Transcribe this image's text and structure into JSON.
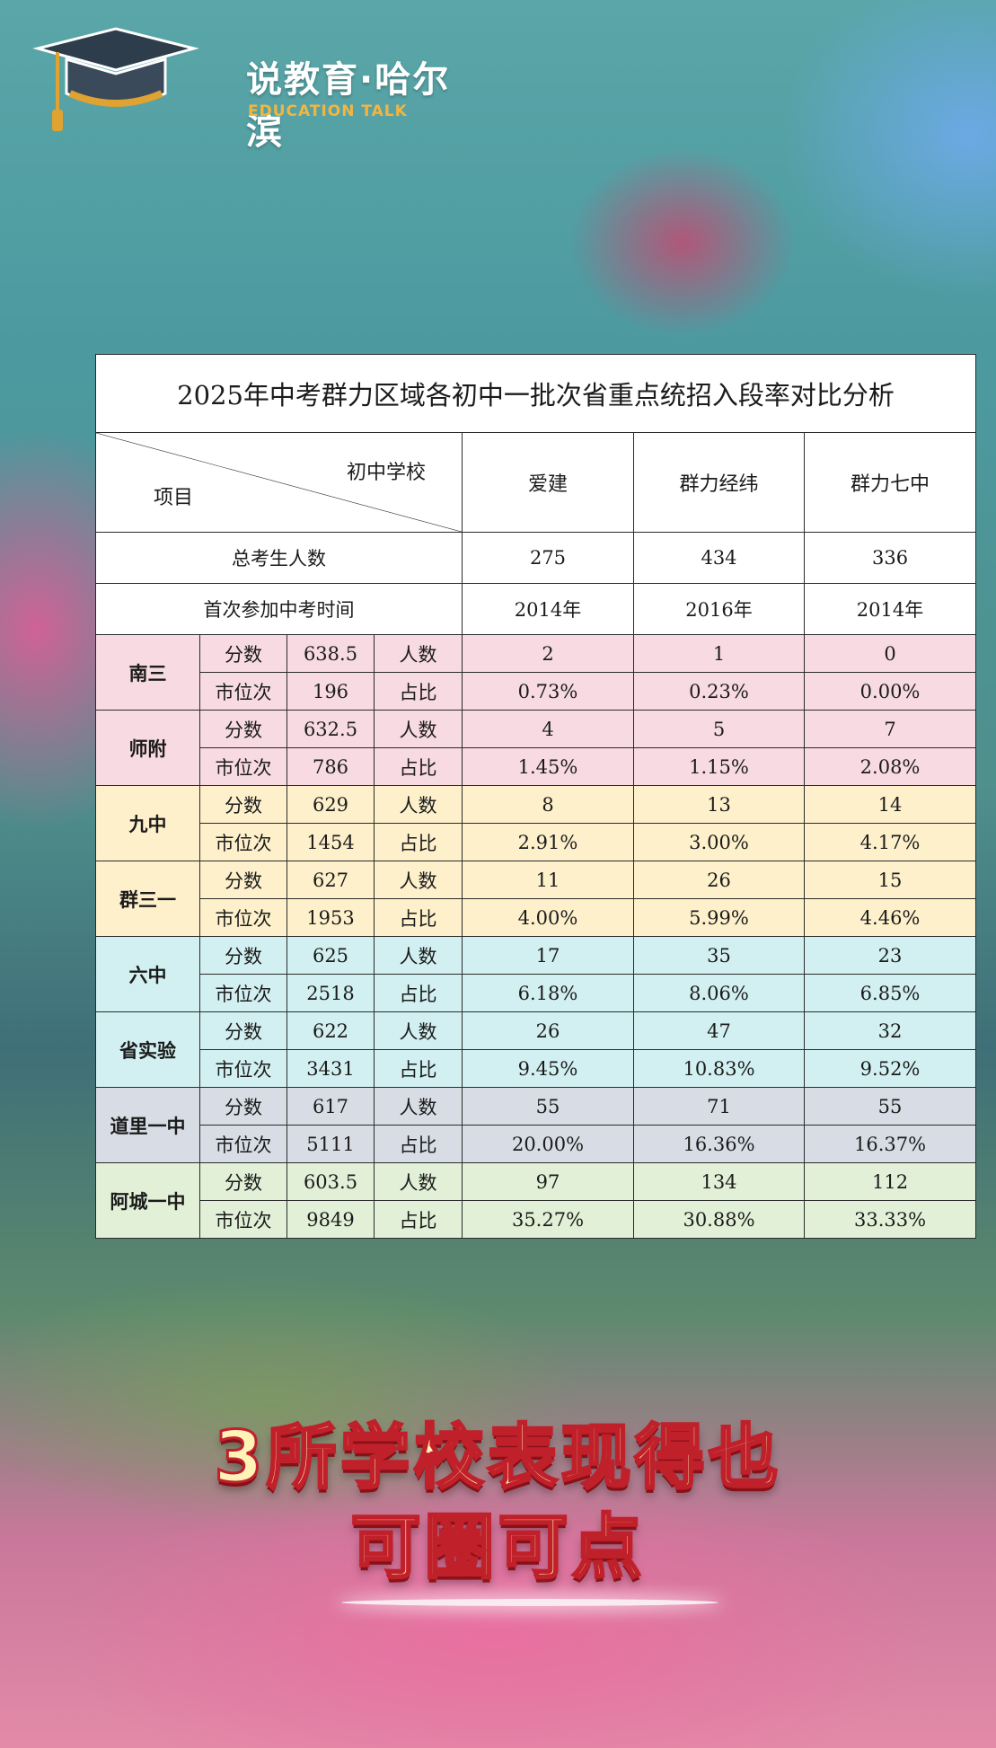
{
  "brand": {
    "name": "说教育·哈尔滨",
    "sub": "EDUCATION TALK",
    "accent": "#f2b640"
  },
  "table": {
    "title": "2025年中考群力区域各初中一批次省重点统招入段率对比分析",
    "corner_top": "初中学校",
    "corner_bottom": "项目",
    "schools": [
      "爱建",
      "群力经纬",
      "群力七中"
    ],
    "total_label": "总考生人数",
    "totals": [
      "275",
      "434",
      "336"
    ],
    "first_year_label": "首次参加中考时间",
    "first_years": [
      "2014年",
      "2016年",
      "2014年"
    ],
    "score_label": "分数",
    "rank_label": "市位次",
    "count_label": "人数",
    "ratio_label": "占比",
    "rows": [
      {
        "name": "南三",
        "score": "638.5",
        "rank": "196",
        "counts": [
          "2",
          "1",
          "0"
        ],
        "ratios": [
          "0.73%",
          "0.23%",
          "0.00%"
        ],
        "color": "#f7dae2"
      },
      {
        "name": "师附",
        "score": "632.5",
        "rank": "786",
        "counts": [
          "4",
          "5",
          "7"
        ],
        "ratios": [
          "1.45%",
          "1.15%",
          "2.08%"
        ],
        "color": "#f7dae2"
      },
      {
        "name": "九中",
        "score": "629",
        "rank": "1454",
        "counts": [
          "8",
          "13",
          "14"
        ],
        "ratios": [
          "2.91%",
          "3.00%",
          "4.17%"
        ],
        "color": "#fdf0cb"
      },
      {
        "name": "群三一",
        "score": "627",
        "rank": "1953",
        "counts": [
          "11",
          "26",
          "15"
        ],
        "ratios": [
          "4.00%",
          "5.99%",
          "4.46%"
        ],
        "color": "#fdf0cb"
      },
      {
        "name": "六中",
        "score": "625",
        "rank": "2518",
        "counts": [
          "17",
          "35",
          "23"
        ],
        "ratios": [
          "6.18%",
          "8.06%",
          "6.85%"
        ],
        "color": "#d2f0f1"
      },
      {
        "name": "省实验",
        "score": "622",
        "rank": "3431",
        "counts": [
          "26",
          "47",
          "32"
        ],
        "ratios": [
          "9.45%",
          "10.83%",
          "9.52%"
        ],
        "color": "#d2f0f1"
      },
      {
        "name": "道里一中",
        "score": "617",
        "rank": "5111",
        "counts": [
          "55",
          "71",
          "55"
        ],
        "ratios": [
          "20.00%",
          "16.36%",
          "16.37%"
        ],
        "color": "#d8dce5"
      },
      {
        "name": "阿城一中",
        "score": "603.5",
        "rank": "9849",
        "counts": [
          "97",
          "134",
          "112"
        ],
        "ratios": [
          "35.27%",
          "30.88%",
          "33.33%"
        ],
        "color": "#e1f0d6"
      }
    ]
  },
  "caption": {
    "line1": "3所学校表现得也",
    "line2": "可圈可点"
  }
}
